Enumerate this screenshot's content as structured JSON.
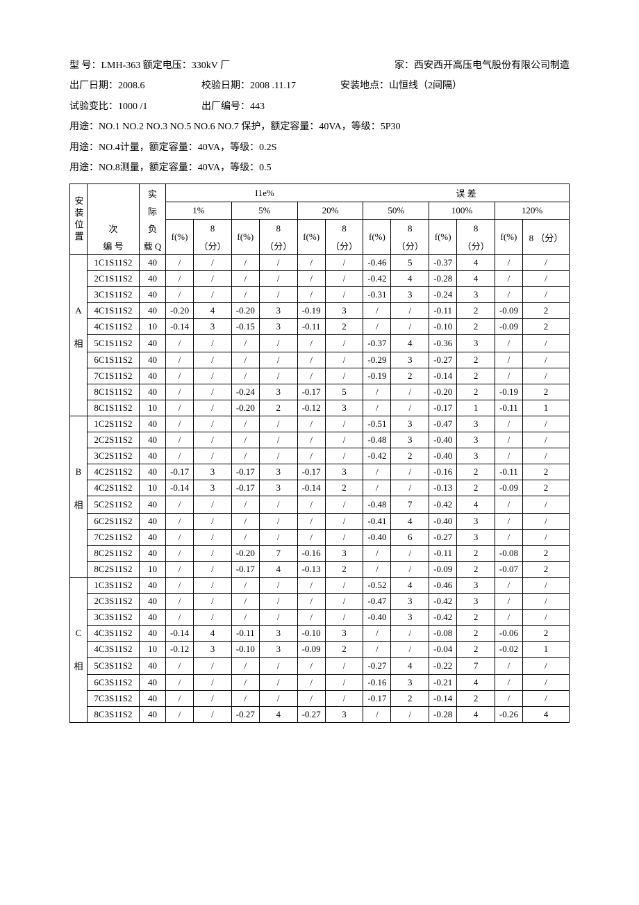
{
  "header": {
    "line1_left": "型 号：LMH-363 额定电压：330kV 厂",
    "line1_right": "家：西安西开高压电气股份有限公司制造",
    "line2_a": "出厂日期：2008.6",
    "line2_b": "校验日期：2008 .11.17",
    "line2_c": "安装地点：山恒线（2间隔）",
    "line3_a": "试验变比：1000 /1",
    "line3_b": "出厂编号：443",
    "line4": "用途：NO.1 NO.2 NO.3 NO.5 NO.6 NO.7 保护，额定容量：40VA，等级：5P30",
    "line5": "用途：NO.4计量，额定容量：40VA，等级：0.2S",
    "line6": "用途：NO.8测量，额定容量：40VA，等级：0.5"
  },
  "table": {
    "col_pos": "安装位置",
    "col_serial_1": "次",
    "col_serial_2": "编 号",
    "col_load_1": "实",
    "col_load_2": "际",
    "col_load_3": "负",
    "col_load_4": "载 Q",
    "top1": "I1e%",
    "top2": "误    差",
    "pct_labels": [
      "1%",
      "5%",
      "20%",
      "50%",
      "100%",
      "120%"
    ],
    "sub_f": "f(%)",
    "sub_8a": "8",
    "sub_8b": "（分）",
    "sub_8c": "8 （分）"
  },
  "phases": [
    {
      "label": "A",
      "sub": "相",
      "rows": [
        {
          "s": "1C1S11S2",
          "q": "40",
          "v": [
            "/",
            "",
            "/",
            "",
            "/",
            "",
            "/",
            "",
            "/",
            "",
            "/",
            "",
            "-0.46",
            "5",
            "-0.37",
            "4",
            "/",
            "",
            "/",
            ""
          ]
        },
        {
          "s": "2C1S11S2",
          "q": "40",
          "v": [
            "/",
            "",
            "/",
            "",
            "/",
            "",
            "/",
            "",
            "/",
            "",
            "/",
            "",
            "-0.42",
            "4",
            "-0.28",
            "4",
            "/",
            "",
            "/",
            ""
          ]
        },
        {
          "s": "3C1S11S2",
          "q": "40",
          "v": [
            "/",
            "",
            "/",
            "",
            "/",
            "",
            "/",
            "",
            "/",
            "",
            "/",
            "",
            "-0.31",
            "3",
            "-0.24",
            "3",
            "/",
            "",
            "/",
            ""
          ]
        },
        {
          "s": "4C1S11S2",
          "q": "40",
          "v": [
            "-0.20",
            "4",
            "-0.20",
            "3",
            "-0.19",
            "3",
            "/",
            "",
            "/",
            "",
            "-0.11",
            "2",
            "-0.09",
            "2",
            "",
            ""
          ]
        },
        {
          "s": "4C1S11S2",
          "q": "10",
          "v": [
            "-0.14",
            "3",
            "-0.15",
            "3",
            "-0.11",
            "2",
            "/",
            "",
            "/",
            "",
            "-0.10",
            "2",
            "-0.09",
            "2",
            "",
            ""
          ]
        },
        {
          "s": "5C1S11S2",
          "q": "40",
          "v": [
            "/",
            "",
            "/",
            "",
            "/",
            "",
            "/",
            "",
            "/",
            "",
            "/",
            "",
            "-0.37",
            "4",
            "-0.36",
            "3",
            "/",
            "",
            "/",
            ""
          ]
        },
        {
          "s": "6C1S11S2",
          "q": "40",
          "v": [
            "/",
            "",
            "/",
            "",
            "/",
            "",
            "/",
            "",
            "/",
            "",
            "/",
            "",
            "-0.29",
            "3",
            "-0.27",
            "2",
            "/",
            "",
            "/",
            ""
          ]
        },
        {
          "s": "7C1S11S2",
          "q": "40",
          "v": [
            "/",
            "",
            "/",
            "",
            "/",
            "",
            "/",
            "",
            "/",
            "",
            "/",
            "",
            "-0.19",
            "2",
            "-0.14",
            "2",
            "/",
            "",
            "/",
            ""
          ]
        },
        {
          "s": "8C1S11S2",
          "q": "40",
          "v": [
            "/",
            "",
            "/",
            "",
            "-0.24",
            "3",
            "-0.17",
            "5",
            "/",
            "",
            "/",
            "",
            "-0.20",
            "2",
            "-0.19",
            "2",
            "",
            ""
          ]
        },
        {
          "s": "8C1S11S2",
          "q": "10",
          "v": [
            "/",
            "",
            "/",
            "",
            "-0.20",
            "2",
            "-0.12",
            "3",
            "/",
            "",
            "/",
            "",
            "-0.17",
            "1",
            "-0.11",
            "1",
            "",
            ""
          ]
        }
      ]
    },
    {
      "label": "B",
      "sub": "相",
      "rows": [
        {
          "s": "1C2S11S2",
          "q": "40",
          "v": [
            "/",
            "",
            "/",
            "",
            "/",
            "",
            "/",
            "",
            "/",
            "",
            "/",
            "",
            "-0.51",
            "3",
            "-0.47",
            "3",
            "/",
            "",
            "/",
            ""
          ]
        },
        {
          "s": "2C2S11S2",
          "q": "40",
          "v": [
            "/",
            "",
            "/",
            "",
            "/",
            "",
            "/",
            "",
            "/",
            "",
            "/",
            "",
            "-0.48",
            "3",
            "-0.40",
            "3",
            "/",
            "",
            "/",
            ""
          ]
        },
        {
          "s": "3C2S11S2",
          "q": "40",
          "v": [
            "/",
            "",
            "/",
            "",
            "/",
            "",
            "/",
            "",
            "/",
            "",
            "/",
            "",
            "-0.42",
            "2",
            "-0.40",
            "3",
            "/",
            "",
            "/",
            ""
          ]
        },
        {
          "s": "4C2S11S2",
          "q": "40",
          "v": [
            "-0.17",
            "3",
            "-0.17",
            "3",
            "-0.17",
            "3",
            "/",
            "",
            "/",
            "",
            "-0.16",
            "2",
            "-0.11",
            "2",
            "",
            ""
          ]
        },
        {
          "s": "4C2S11S2",
          "q": "10",
          "v": [
            "-0.14",
            "3",
            "-0.17",
            "3",
            "-0.14",
            "2",
            "/",
            "",
            "/",
            "",
            "-0.13",
            "2",
            "-0.09",
            "2",
            "",
            ""
          ]
        },
        {
          "s": "5C2S11S2",
          "q": "40",
          "v": [
            "/",
            "",
            "/",
            "",
            "/",
            "",
            "/",
            "",
            "/",
            "",
            "/",
            "",
            "-0.48",
            "7",
            "-0.42",
            "4",
            "/",
            "",
            "/",
            ""
          ]
        },
        {
          "s": "6C2S11S2",
          "q": "40",
          "v": [
            "/",
            "",
            "/",
            "",
            "/",
            "",
            "/",
            "",
            "/",
            "",
            "/",
            "",
            "-0.41",
            "4",
            "-0.40",
            "3",
            "/",
            "",
            "/",
            ""
          ]
        },
        {
          "s": "7C2S11S2",
          "q": "40",
          "v": [
            "/",
            "",
            "/",
            "",
            "/",
            "",
            "/",
            "",
            "/",
            "",
            "/",
            "",
            "-0.40",
            "6",
            "-0.27",
            "3",
            "/",
            "",
            "/",
            ""
          ]
        },
        {
          "s": "8C2S11S2",
          "q": "40",
          "v": [
            "/",
            "",
            "/",
            "",
            "-0.20",
            "7",
            "-0.16",
            "3",
            "/",
            "",
            "/",
            "",
            "-0.11",
            "2",
            "-0.08",
            "2",
            "",
            ""
          ]
        },
        {
          "s": "8C2S11S2",
          "q": "10",
          "v": [
            "/",
            "",
            "/",
            "",
            "-0.17",
            "4",
            "-0.13",
            "2",
            "/",
            "",
            "/",
            "",
            "-0.09",
            "2",
            "-0.07",
            "2",
            "",
            ""
          ]
        }
      ]
    },
    {
      "label": "C",
      "sub": "相",
      "rows": [
        {
          "s": "1C3S11S2",
          "q": "40",
          "v": [
            "/",
            "",
            "/",
            "",
            "/",
            "",
            "/",
            "",
            "/",
            "",
            "/",
            "",
            "-0.52",
            "4",
            "-0.46",
            "3",
            "/",
            "",
            "/",
            ""
          ]
        },
        {
          "s": "2C3S11S2",
          "q": "40",
          "v": [
            "/",
            "",
            "/",
            "",
            "/",
            "",
            "/",
            "",
            "/",
            "",
            "/",
            "",
            "-0.47",
            "3",
            "-0.42",
            "3",
            "/",
            "",
            "/",
            ""
          ]
        },
        {
          "s": "3C3S11S2",
          "q": "40",
          "v": [
            "/",
            "",
            "/",
            "",
            "/",
            "",
            "/",
            "",
            "/",
            "",
            "/",
            "",
            "-0.40",
            "3",
            "-0.42",
            "2",
            "/",
            "",
            "/",
            ""
          ]
        },
        {
          "s": "4C3S11S2",
          "q": "40",
          "v": [
            "-0.14",
            "4",
            "-0.11",
            "3",
            "-0.10",
            "3",
            "/",
            "",
            "/",
            "",
            "-0.08",
            "2",
            "-0.06",
            "2",
            "",
            ""
          ]
        },
        {
          "s": "4C3S11S2",
          "q": "10",
          "v": [
            "-0.12",
            "3",
            "-0.10",
            "3",
            "-0.09",
            "2",
            "/",
            "",
            "/",
            "",
            "-0.04",
            "2",
            "-0.02",
            "1",
            "",
            ""
          ]
        },
        {
          "s": "5C3S11S2",
          "q": "40",
          "v": [
            "/",
            "",
            "/",
            "",
            "/",
            "",
            "/",
            "",
            "/",
            "",
            "/",
            "",
            "-0.27",
            "4",
            "-0.22",
            "7",
            "/",
            "",
            "/",
            ""
          ]
        },
        {
          "s": "6C3S11S2",
          "q": "40",
          "v": [
            "/",
            "",
            "/",
            "",
            "/",
            "",
            "/",
            "",
            "/",
            "",
            "/",
            "",
            "-0.16",
            "3",
            "-0.21",
            "4",
            "/",
            "",
            "/",
            ""
          ]
        },
        {
          "s": "7C3S11S2",
          "q": "40",
          "v": [
            "/",
            "",
            "/",
            "",
            "/",
            "",
            "/",
            "",
            "/",
            "",
            "/",
            "",
            "-0.17",
            "2",
            "-0.14",
            "2",
            "/",
            "",
            "/",
            ""
          ]
        },
        {
          "s": "8C3S11S2",
          "q": "40",
          "v": [
            "/",
            "",
            "/",
            "",
            "-0.27",
            "4",
            "-0.27",
            "3",
            "/",
            "",
            "/",
            "",
            "-0.28",
            "4",
            "-0.26",
            "4",
            "",
            ""
          ]
        }
      ]
    }
  ]
}
